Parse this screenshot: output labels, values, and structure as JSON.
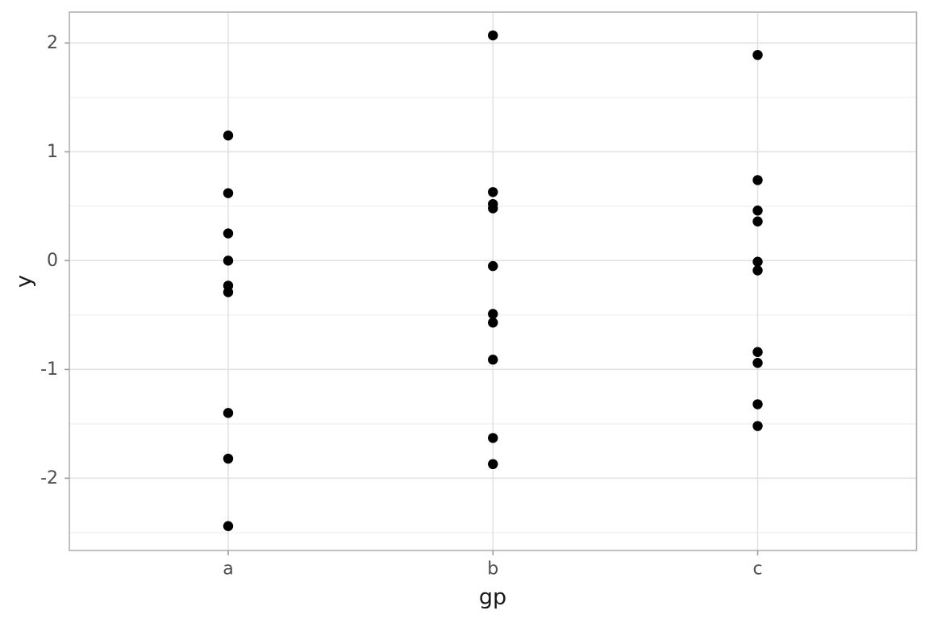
{
  "chart_data": {
    "type": "scatter",
    "title": "",
    "xlabel": "gp",
    "ylabel": "y",
    "categories": [
      "a",
      "b",
      "c"
    ],
    "series": [
      {
        "name": "a",
        "y": [
          1.15,
          0.62,
          0.25,
          0.0,
          -0.23,
          -0.29,
          -1.4,
          -1.82,
          -2.44
        ]
      },
      {
        "name": "b",
        "y": [
          2.07,
          0.63,
          0.52,
          0.48,
          -0.05,
          -0.49,
          -0.57,
          -0.91,
          -1.63,
          -1.87
        ]
      },
      {
        "name": "c",
        "y": [
          1.89,
          0.74,
          0.46,
          0.36,
          -0.01,
          -0.09,
          -0.84,
          -0.94,
          -1.32,
          -1.52
        ]
      }
    ],
    "ylim": [
      -2.664,
      2.284
    ],
    "yticks": {
      "values": [
        2,
        1,
        0,
        -1,
        -2
      ],
      "labels": [
        "2",
        "1",
        "0",
        "-1",
        "-2"
      ]
    },
    "yminor": [
      1.5,
      0.5,
      -0.5,
      -1.5,
      -2.5
    ],
    "grid": true,
    "legend": "none",
    "point_color": "#000000",
    "colors": {
      "background": "#ffffff",
      "panel_background": "#ffffff",
      "panel_border": "#b0b0b0",
      "major_grid": "#e2e2e2",
      "minor_grid": "#efefef",
      "tick_mark": "#9e9e9e",
      "tick_label": "#4d4d4d",
      "axis_title": "#1a1a1a"
    }
  }
}
